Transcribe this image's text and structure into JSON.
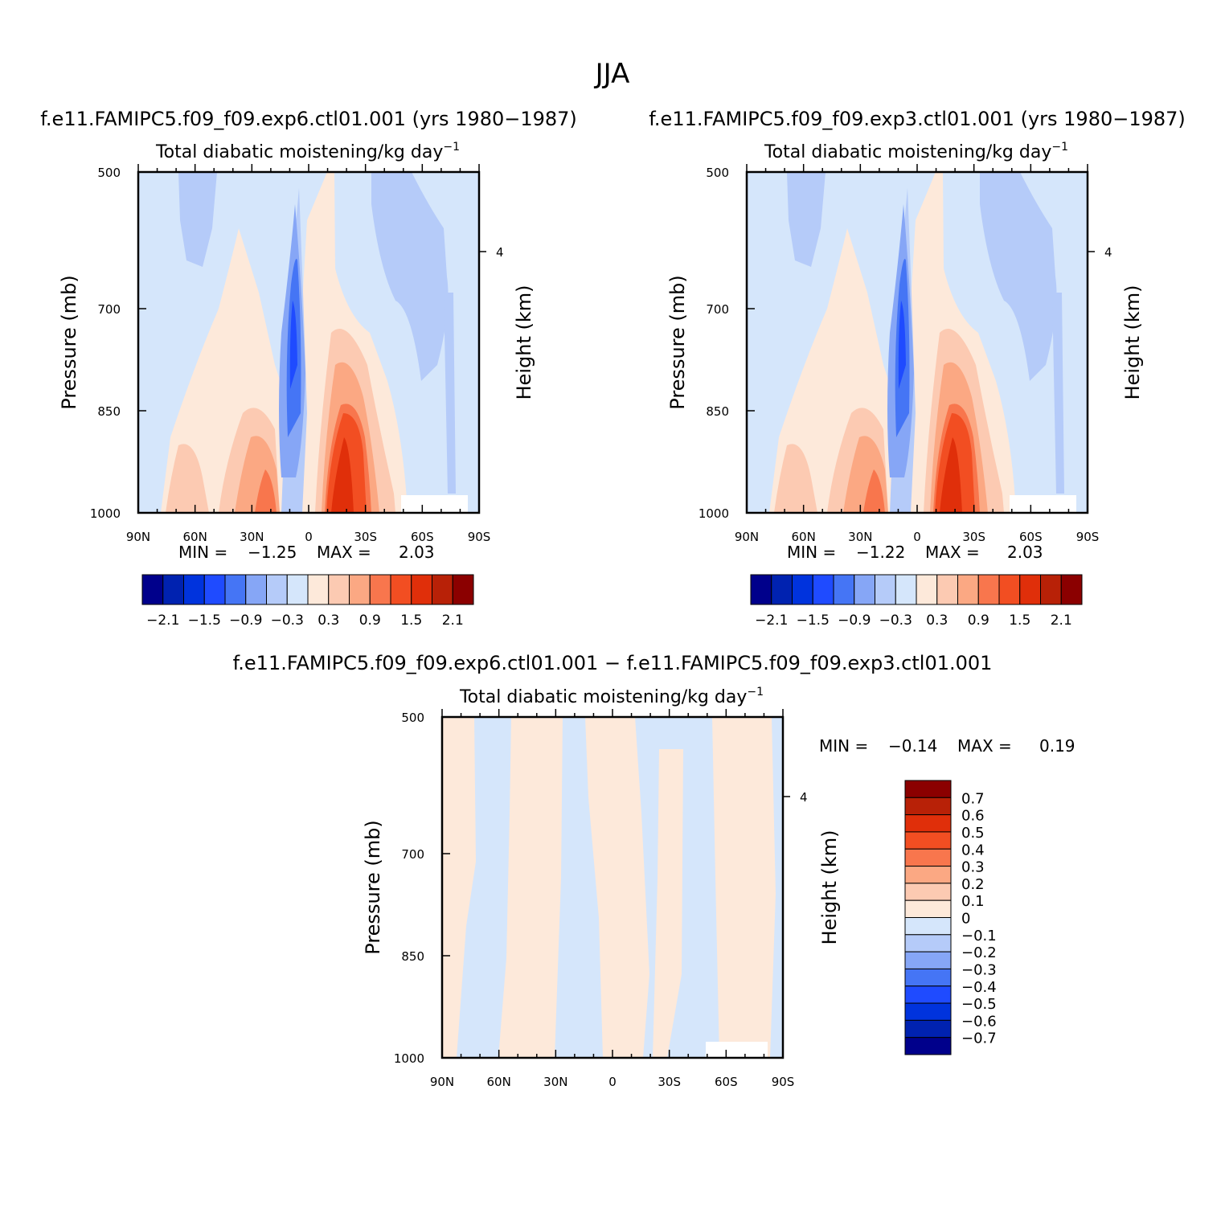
{
  "figure": {
    "title": "JJA"
  },
  "chart_data": [
    {
      "type": "heatmap",
      "title": "f.e11.FAMIPC5.f09_f09.exp6.ctl01.001 (yrs 1980−1987)",
      "subtitle_main": "Total diabatic moistening/kg day",
      "subtitle_sup": "−1",
      "ylabel": "Pressure (mb)",
      "ylabel_right": "Height (km)",
      "x_ticks": [
        "90N",
        "60N",
        "30N",
        "0",
        "30S",
        "60S",
        "90S"
      ],
      "y_ticks": [
        "500",
        "700",
        "850",
        "1000"
      ],
      "y_ticks_right": [
        "4"
      ],
      "ylim": [
        1000,
        500
      ],
      "min_label": "MIN =",
      "min_value": "−1.25",
      "max_label": "MAX =",
      "max_value": "2.03",
      "colorbar_labels": [
        "−2.1",
        "−1.5",
        "−0.9",
        "−0.3",
        "0.3",
        "0.9",
        "1.5",
        "2.1"
      ],
      "field": "main"
    },
    {
      "type": "heatmap",
      "title": "f.e11.FAMIPC5.f09_f09.exp3.ctl01.001 (yrs 1980−1987)",
      "subtitle_main": "Total diabatic moistening/kg day",
      "subtitle_sup": "−1",
      "ylabel": "Pressure (mb)",
      "ylabel_right": "Height (km)",
      "x_ticks": [
        "90N",
        "60N",
        "30N",
        "0",
        "30S",
        "60S",
        "90S"
      ],
      "y_ticks": [
        "500",
        "700",
        "850",
        "1000"
      ],
      "y_ticks_right": [
        "4"
      ],
      "ylim": [
        1000,
        500
      ],
      "min_label": "MIN =",
      "min_value": "−1.22",
      "max_label": "MAX =",
      "max_value": "2.03",
      "colorbar_labels": [
        "−2.1",
        "−1.5",
        "−0.9",
        "−0.3",
        "0.3",
        "0.9",
        "1.5",
        "2.1"
      ],
      "field": "main"
    },
    {
      "type": "heatmap",
      "title": "f.e11.FAMIPC5.f09_f09.exp6.ctl01.001 − f.e11.FAMIPC5.f09_f09.exp3.ctl01.001",
      "subtitle_main": "Total diabatic moistening/kg day",
      "subtitle_sup": "−1",
      "ylabel": "Pressure (mb)",
      "ylabel_right": "Height (km)",
      "x_ticks": [
        "90N",
        "60N",
        "30N",
        "0",
        "30S",
        "60S",
        "90S"
      ],
      "y_ticks": [
        "500",
        "700",
        "850",
        "1000"
      ],
      "y_ticks_right": [
        "4"
      ],
      "ylim": [
        1000,
        500
      ],
      "min_label": "MIN =",
      "min_value": "−0.14",
      "max_label": "MAX =",
      "max_value": "0.19",
      "colorbar_labels": [
        "0.7",
        "0.6",
        "0.5",
        "0.4",
        "0.3",
        "0.2",
        "0.1",
        "0",
        "−0.1",
        "−0.2",
        "−0.3",
        "−0.4",
        "−0.5",
        "−0.6",
        "−0.7"
      ],
      "field": "diff"
    }
  ],
  "colormap": [
    "#00008b",
    "#0022b0",
    "#0033dd",
    "#1f4bff",
    "#4575f5",
    "#86a6f6",
    "#b5cbf9",
    "#d5e6fb",
    "#fde9da",
    "#fccab2",
    "#fba883",
    "#f8764d",
    "#f24e22",
    "#e02f0a",
    "#b82107",
    "#8b0000"
  ]
}
